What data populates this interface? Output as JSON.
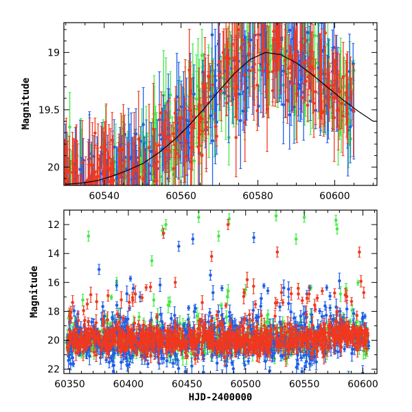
{
  "colors": {
    "green": "#44e844",
    "blue": "#1f5fe8",
    "red": "#f0381f",
    "model": "#000000"
  },
  "chart_data": [
    {
      "type": "scatter",
      "panel": "top",
      "title": "",
      "xlabel": "",
      "ylabel": "Magnitude",
      "xlim": [
        60529.5,
        60611
      ],
      "ylim": [
        20.16,
        18.74
      ],
      "y_inverted": true,
      "xticks": [
        60540,
        60560,
        60580,
        60600
      ],
      "yticks": [
        19,
        19.5,
        20
      ],
      "ytick_labels": [
        "19",
        "19.5",
        "20"
      ],
      "model_curve": {
        "color": "black",
        "x": [
          60530,
          60534,
          60538,
          60542,
          60546,
          60550,
          60554,
          60558,
          60562,
          60566,
          60570,
          60574,
          60578,
          60582,
          60586,
          60590,
          60594,
          60598,
          60602,
          60606,
          60610
        ],
        "y": [
          20.15,
          20.14,
          20.12,
          20.08,
          20.03,
          19.97,
          19.88,
          19.77,
          19.64,
          19.49,
          19.33,
          19.18,
          19.06,
          19.0,
          19.02,
          19.09,
          19.19,
          19.3,
          19.41,
          19.51,
          19.6
        ]
      },
      "series": [
        {
          "color": "green",
          "n_points": 260,
          "trend": "follows model"
        },
        {
          "color": "blue",
          "n_points": 260,
          "trend": "follows model"
        },
        {
          "color": "red",
          "n_points": 300,
          "trend": "follows model"
        }
      ]
    },
    {
      "type": "scatter",
      "panel": "bottom",
      "title": "",
      "xlabel": "HJD-2400000",
      "ylabel": "Magnitude",
      "xlim": [
        60345,
        60612
      ],
      "ylim": [
        22.3,
        11.0
      ],
      "y_inverted": true,
      "xticks": [
        60350,
        60400,
        60450,
        60500,
        60550,
        60600
      ],
      "yticks": [
        12,
        14,
        16,
        18,
        20,
        22
      ],
      "baseline_magnitude": 20.0,
      "series": [
        {
          "color": "green",
          "n_points": 500,
          "outliers": [
            [
              60366,
              12.8
            ],
            [
              60429,
              12.4
            ],
            [
              60432,
              12.0
            ],
            [
              60460,
              11.5
            ],
            [
              60477,
              12.8
            ],
            [
              60486,
              11.6
            ],
            [
              60526,
              11.4
            ],
            [
              60543,
              13.0
            ],
            [
              60550,
              11.5
            ],
            [
              60577,
              11.7
            ],
            [
              60578,
              12.3
            ],
            [
              60390,
              16.0
            ],
            [
              60420,
              14.5
            ],
            [
              60500,
              16.5
            ]
          ]
        },
        {
          "color": "blue",
          "n_points": 700,
          "outliers": [
            [
              60430,
              12.6
            ],
            [
              60443,
              13.5
            ],
            [
              60455,
              13.0
            ],
            [
              60507,
              12.9
            ],
            [
              60375,
              15.1
            ],
            [
              60390,
              16.2
            ],
            [
              60410,
              17.0
            ],
            [
              60470,
              15.5
            ]
          ]
        },
        {
          "color": "red",
          "n_points": 900,
          "outliers": [
            [
              60430,
              12.6
            ],
            [
              60471,
              14.2
            ],
            [
              60485,
              12.0
            ],
            [
              60527,
              13.9
            ],
            [
              60597,
              13.9
            ],
            [
              60365,
              17.5
            ],
            [
              60440,
              16.0
            ],
            [
              60545,
              16.8
            ]
          ]
        }
      ]
    }
  ]
}
